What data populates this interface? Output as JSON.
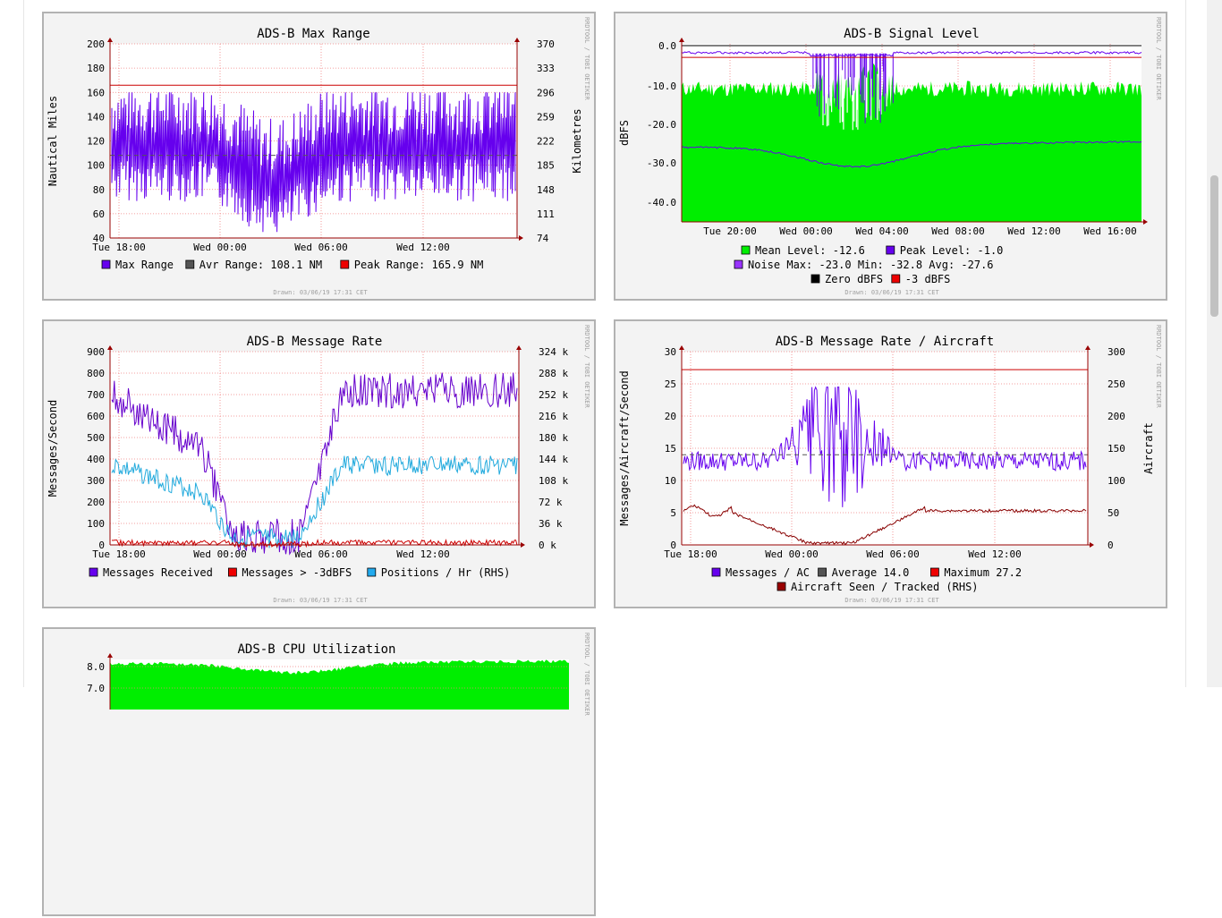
{
  "chart_data": [
    {
      "type": "line",
      "title": "ADS-B Max Range",
      "ylabel": "Nautical Miles",
      "ylabel_right": "Kilometres",
      "yticks": [
        "200",
        "180",
        "160",
        "140",
        "120",
        "100",
        "80",
        "60",
        "40"
      ],
      "yticks_right": [
        "370",
        "333",
        "296",
        "259",
        "222",
        "185",
        "148",
        "111",
        "74"
      ],
      "ylim": [
        40,
        200
      ],
      "xticks": [
        "Tue 18:00",
        "Wed 00:00",
        "Wed 06:00",
        "Wed 12:00"
      ],
      "series": [
        {
          "name": "Max Range",
          "color": "#6600ee",
          "range": [
            55,
            160
          ],
          "base": 110,
          "dip": 70
        }
      ],
      "hlines": [
        {
          "name": "Avr Range",
          "value": 108.1,
          "color": "#555555",
          "style": "dashed"
        },
        {
          "name": "Peak Range",
          "value": 165.9,
          "color": "#cc0000",
          "style": "solid"
        }
      ],
      "legend": [
        {
          "color": "#6600ee",
          "text": "Max Range"
        },
        {
          "color": "#555555",
          "text": "Avr Range:  108.1 NM"
        },
        {
          "color": "#ee0000",
          "text": "Peak Range:  165.9 NM"
        }
      ],
      "credit": "RRDTOOL / TOBI OETIKER",
      "drawn": "Drawn: 03/06/19 17:31 CET"
    },
    {
      "type": "area",
      "title": "ADS-B Signal Level",
      "ylabel": "dBFS",
      "yticks": [
        "0.0",
        "-10.0",
        "-20.0",
        "-30.0",
        "-40.0"
      ],
      "ylim": [
        -45,
        1
      ],
      "xticks": [
        "Tue 20:00",
        "Wed 00:00",
        "Wed 04:00",
        "Wed 08:00",
        "Wed 12:00",
        "Wed 16:00"
      ],
      "series": [
        {
          "name": "Mean Level",
          "value": -12.6,
          "color": "#00ee00"
        },
        {
          "name": "Peak Level",
          "value": -1.0,
          "color": "#6600ee"
        },
        {
          "name": "Noise",
          "max": -23.0,
          "min": -32.8,
          "avg": -27.6,
          "color": "#6600ee"
        }
      ],
      "hlines": [
        {
          "name": "Zero dBFS",
          "value": 0,
          "color": "#000000"
        },
        {
          "name": "-3 dBFS",
          "value": -3,
          "color": "#cc0000"
        }
      ],
      "legend": [
        {
          "color": "#00ee00",
          "text": "Mean Level:   -12.6"
        },
        {
          "color": "#6600ee",
          "text": "Peak Level:   -1.0"
        },
        {
          "color": "#9933ff",
          "text": "Noise   Max: -23.0  Min: -32.8  Avg: -27.6"
        },
        {
          "color": "#000000",
          "text": "Zero dBFS"
        },
        {
          "color": "#ee0000",
          "text": "-3 dBFS"
        }
      ],
      "credit": "RRDTOOL / TOBI OETIKER",
      "drawn": "Drawn: 03/06/19 17:31 CET"
    },
    {
      "type": "line",
      "title": "ADS-B Message Rate",
      "ylabel": "Messages/Second",
      "yticks": [
        "900",
        "800",
        "700",
        "600",
        "500",
        "400",
        "300",
        "200",
        "100",
        "0"
      ],
      "yticks_right": [
        "324 k",
        "288 k",
        "252 k",
        "216 k",
        "180 k",
        "144 k",
        "108 k",
        "72 k",
        "36 k",
        "0 k"
      ],
      "ylim": [
        0,
        900
      ],
      "xticks": [
        "Tue 18:00",
        "Wed 00:00",
        "Wed 06:00",
        "Wed 12:00"
      ],
      "series": [
        {
          "name": "Messages Received",
          "color": "#6600cc"
        },
        {
          "name": "Messages > -3dBFS",
          "color": "#cc0000"
        },
        {
          "name": "Positions / Hr (RHS)",
          "color": "#22aadd"
        }
      ],
      "legend": [
        {
          "color": "#6600ee",
          "text": "Messages Received"
        },
        {
          "color": "#ee0000",
          "text": "Messages > -3dBFS"
        },
        {
          "color": "#22aaee",
          "text": "Positions / Hr (RHS)"
        }
      ],
      "credit": "RRDTOOL / TOBI OETIKER",
      "drawn": "Drawn: 03/06/19 17:31 CET"
    },
    {
      "type": "line",
      "title": "ADS-B Message Rate / Aircraft",
      "ylabel": "Messages/Aircraft/Second",
      "ylabel_right": "Aircraft",
      "yticks": [
        "30",
        "25",
        "20",
        "15",
        "10",
        "5",
        "0"
      ],
      "yticks_right": [
        "300",
        "250",
        "200",
        "150",
        "100",
        "50",
        "0"
      ],
      "ylim": [
        0,
        30
      ],
      "xticks": [
        "Tue 18:00",
        "Wed 00:00",
        "Wed 06:00",
        "Wed 12:00"
      ],
      "series": [
        {
          "name": "Messages / AC",
          "color": "#6600ee"
        },
        {
          "name": "Aircraft Seen / Tracked (RHS)",
          "color": "#880000"
        }
      ],
      "hlines": [
        {
          "name": "Average",
          "value": 14.0,
          "color": "#555555",
          "style": "dashed"
        },
        {
          "name": "Maximum",
          "value": 27.2,
          "color": "#cc0000",
          "style": "solid"
        }
      ],
      "legend": [
        {
          "color": "#6600ee",
          "text": "Messages / AC"
        },
        {
          "color": "#555555",
          "text": "Average   14.0"
        },
        {
          "color": "#ee0000",
          "text": "Maximum   27.2"
        },
        {
          "color": "#990000",
          "text": "Aircraft Seen / Tracked (RHS)"
        }
      ],
      "credit": "RRDTOOL / TOBI OETIKER",
      "drawn": "Drawn: 03/06/19 17:31 CET"
    },
    {
      "type": "area",
      "title": "ADS-B CPU Utilization",
      "yticks": [
        "8.0",
        "7.0"
      ],
      "series": [
        {
          "name": "CPU",
          "color": "#00ee00"
        }
      ],
      "credit": "RRDTOOL / TOBI OETIKER"
    }
  ]
}
